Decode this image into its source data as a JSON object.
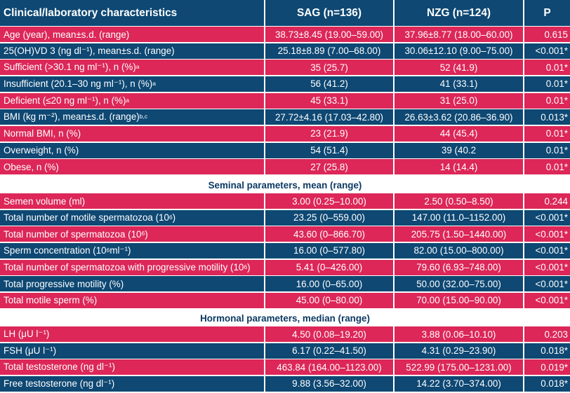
{
  "colors": {
    "navy": "#0e4873",
    "crimson": "#dc2758",
    "section_text": "#0c3a64"
  },
  "header": {
    "col0": "Clinical/laboratory characteristics",
    "col1": "SAG (n=136)",
    "col2": "NZG (n=124)",
    "col3": "P"
  },
  "rows1": [
    {
      "c0": "Age (year), mean±s.d. (range)",
      "c1": "38.73±8.45 (19.00–59.00)",
      "c2": "37.96±8.77 (18.00–60.00)",
      "c3": "0.615",
      "color": "crimson"
    },
    {
      "c0": "25(OH)VD 3 (ng dl⁻¹), mean±s.d. (range)",
      "c1": "25.18±8.89 (7.00–68.00)",
      "c2": "30.06±12.10 (9.00–75.00)",
      "c3": "<0.001*",
      "color": "navy"
    },
    {
      "c0": "Sufficient (>30.1 ng ml⁻¹), n (%)",
      "sup": "a",
      "c1": "35 (25.7)",
      "c2": "52 (41.9)",
      "c3": "0.01*",
      "color": "crimson"
    },
    {
      "c0": "Insufficient (20.1–30 ng ml⁻¹), n (%)",
      "sup": "a",
      "c1": "56 (41.2)",
      "c2": "41 (33.1)",
      "c3": "0.01*",
      "color": "navy"
    },
    {
      "c0": "Deficient (≤20 ng ml⁻¹), n (%)",
      "sup": "a",
      "c1": "45 (33.1)",
      "c2": "31 (25.0)",
      "c3": "0.01*",
      "color": "crimson"
    },
    {
      "c0": "BMI (kg m⁻²), mean±s.d. (range)",
      "sup": "b,c",
      "c1": "27.72±4.16 (17.03–42.80)",
      "c2": "26.63±3.62 (20.86–36.90)",
      "c3": "0.013*",
      "color": "navy"
    },
    {
      "c0": "Normal BMI, n (%)",
      "c1": "23 (21.9)",
      "c2": "44 (45.4)",
      "c3": "0.01*",
      "color": "crimson"
    },
    {
      "c0": "Overweight, n (%)",
      "c1": "54 (51.4)",
      "c2": "39 (40.2",
      "c3": "0.01*",
      "color": "navy"
    },
    {
      "c0": "Obese, n (%)",
      "c1": "27 (25.8)",
      "c2": "14 (14.4)",
      "c3": "0.01*",
      "color": "crimson"
    }
  ],
  "section2": "Seminal parameters, mean (range)",
  "rows2": [
    {
      "c0": "Semen volume (ml)",
      "c1": "3.00 (0.25–10.00)",
      "c2": "2.50 (0.50–8.50)",
      "c3": "0.244",
      "color": "crimson"
    },
    {
      "c0": "Total number of motile spermatozoa (10",
      "sup": "6",
      "tail": ")",
      "c1": "23.25 (0–559.00)",
      "c2": "147.00 (11.0–1152.00)",
      "c3": "<0.001*",
      "color": "navy"
    },
    {
      "c0": "Total number of spermatozoa (10",
      "sup": "6",
      "tail": ")",
      "c1": "43.60 (0–866.70)",
      "c2": "205.75 (1.50–1440.00)",
      "c3": "<0.001*",
      "color": "crimson"
    },
    {
      "c0": "Sperm concentration (10",
      "sup": "6",
      "tail": " ml⁻¹)",
      "c1": "16.00 (0–577.80)",
      "c2": "82.00 (15.00–800.00)",
      "c3": "<0.001*",
      "color": "navy"
    },
    {
      "c0": "Total number of spermatozoa with progressive motility (10",
      "sup": "6",
      "tail": ")",
      "c1": "5.41 (0–426.00)",
      "c2": "79.60 (6.93–748.00)",
      "c3": "<0.001*",
      "color": "crimson"
    },
    {
      "c0": "Total progressive motility (%)",
      "c1": "16.00 (0–65.00)",
      "c2": "50.00 (32.00–75.00)",
      "c3": "<0.001*",
      "color": "navy"
    },
    {
      "c0": "Total motile sperm (%)",
      "c1": "45.00 (0–80.00)",
      "c2": "70.00 (15.00–90.00)",
      "c3": "<0.001*",
      "color": "crimson"
    }
  ],
  "section3": "Hormonal parameters, median (range)",
  "rows3": [
    {
      "c0": "LH (μU l⁻¹)",
      "c1": "4.50 (0.08–19.20)",
      "c2": "3.88 (0.06–10.10)",
      "c3": "0.203",
      "color": "crimson"
    },
    {
      "c0": "FSH (μU l⁻¹)",
      "c1": "6.17 (0.22–41.50)",
      "c2": "4.31 (0.29–23.90)",
      "c3": "0.018*",
      "color": "navy"
    },
    {
      "c0": "Total testosterone (ng dl⁻¹)",
      "c1": "463.84 (164.00–1123.00)",
      "c2": "522.99 (175.00–1231.00)",
      "c3": "0.019*",
      "color": "crimson"
    },
    {
      "c0": "Free testosterone (ng dl⁻¹)",
      "c1": "9.88 (3.56–32.00)",
      "c2": "14.22 (3.70–374.00)",
      "c3": "0.018*",
      "color": "navy"
    }
  ]
}
